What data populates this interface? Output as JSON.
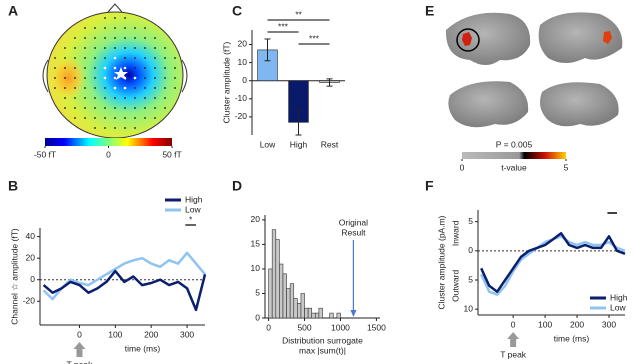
{
  "chart_data": [
    {
      "type": "topomap",
      "panel_label": "A",
      "clim": [
        -50,
        50
      ],
      "cticks": [
        {
          "value": -50,
          "label": "-50 fT"
        },
        0,
        {
          "value": 50,
          "label": "50 fT"
        }
      ]
    },
    {
      "type": "line",
      "panel_label": "B",
      "ylabel": "Channel ☆ amplitude (fT)",
      "xlabel": "time (ms)",
      "x": [
        -100,
        -75,
        -50,
        -25,
        0,
        25,
        50,
        75,
        100,
        125,
        150,
        175,
        200,
        225,
        250,
        275,
        300,
        325,
        350
      ],
      "series": [
        {
          "name": "High",
          "color": "#0b1f6e",
          "values": [
            -5,
            -12,
            -8,
            -2,
            -5,
            -12,
            -8,
            -2,
            8,
            -2,
            3,
            -5,
            -3,
            0,
            -5,
            -2,
            -8,
            -28,
            5
          ]
        },
        {
          "name": "Low",
          "color": "#8fc3f0",
          "values": [
            -10,
            -18,
            -8,
            0,
            -3,
            -5,
            0,
            5,
            10,
            15,
            18,
            20,
            15,
            12,
            18,
            15,
            25,
            15,
            5
          ]
        }
      ],
      "xlim": [
        -110,
        350
      ],
      "xticks": [
        0,
        100,
        200,
        300
      ],
      "ylim": [
        -42,
        48
      ],
      "yticks": [
        -20,
        0,
        20,
        40
      ],
      "significance_label": "*",
      "event_label": "T peak"
    },
    {
      "type": "bar",
      "panel_label": "C",
      "ylabel": "Cluster amplitude (fT)",
      "categories": [
        "Low",
        "High",
        "Rest"
      ],
      "values": [
        17,
        -23,
        -1
      ],
      "errors": [
        6,
        7,
        2
      ],
      "colors": [
        "#7fb8f0",
        "#0a1a6b",
        "#bbbbbb"
      ],
      "ylim": [
        -30,
        28
      ],
      "yticks": [
        -20,
        -10,
        0,
        10,
        20
      ],
      "significance_labels": [
        "**",
        "***",
        "***"
      ]
    },
    {
      "type": "histogram",
      "panel_label": "D",
      "xlabel": [
        "Distribution surrogate",
        "max |sum(t)|"
      ],
      "bins": [
        0,
        50,
        100,
        150,
        200,
        250,
        300,
        350,
        400,
        450,
        500,
        550,
        600,
        650,
        700,
        750,
        800,
        850,
        900,
        950,
        1000
      ],
      "counts": [
        10,
        18,
        16,
        11,
        9,
        6,
        7,
        4,
        3,
        5,
        2,
        2,
        1,
        1,
        2,
        0,
        0,
        1,
        0,
        1
      ],
      "xlim": [
        -50,
        1550
      ],
      "xticks": [
        0,
        500,
        1000,
        1500
      ],
      "ylim": [
        0,
        21
      ],
      "yticks": [
        0,
        5,
        10,
        15,
        20
      ],
      "original_result": {
        "value": 1180,
        "label": [
          "Original",
          "Result"
        ]
      }
    },
    {
      "type": "brain",
      "panel_label": "E",
      "annotation": "P = 0.005",
      "colorbar_label": "t-value",
      "clim": [
        0,
        5
      ],
      "cticks": [
        0,
        5
      ]
    },
    {
      "type": "line",
      "panel_label": "F",
      "ylabel": "Cluster amplitude (pA.m)",
      "xlabel": "time (ms)",
      "x": [
        -100,
        -75,
        -50,
        -25,
        0,
        25,
        50,
        75,
        100,
        125,
        150,
        175,
        200,
        225,
        250,
        275,
        300,
        325,
        350
      ],
      "series": [
        {
          "name": "High",
          "color": "#0b1f6e",
          "values": [
            -3,
            -6,
            -7,
            -5,
            -3,
            -1,
            0,
            0.5,
            1,
            2,
            3,
            1,
            0.5,
            1,
            0.5,
            0.5,
            2.5,
            0,
            -0.5
          ]
        },
        {
          "name": "Low",
          "color": "#8fc3f0",
          "values": [
            -4,
            -7,
            -7.5,
            -6,
            -3.5,
            -1.5,
            -0.5,
            0.5,
            1.5,
            2,
            2.5,
            1.5,
            1,
            1.5,
            1,
            1,
            1.5,
            0.5,
            0
          ]
        }
      ],
      "xlim": [
        -110,
        350
      ],
      "xticks": [
        0,
        100,
        200,
        300
      ],
      "ylim": [
        -11,
        7
      ],
      "yticks": [
        5,
        0,
        {
          "value": -5,
          "label": "5"
        },
        {
          "value": -10,
          "label": "10"
        }
      ],
      "inward_label": "Inward",
      "outward_label": "Outward",
      "event_label": "T peak"
    }
  ]
}
